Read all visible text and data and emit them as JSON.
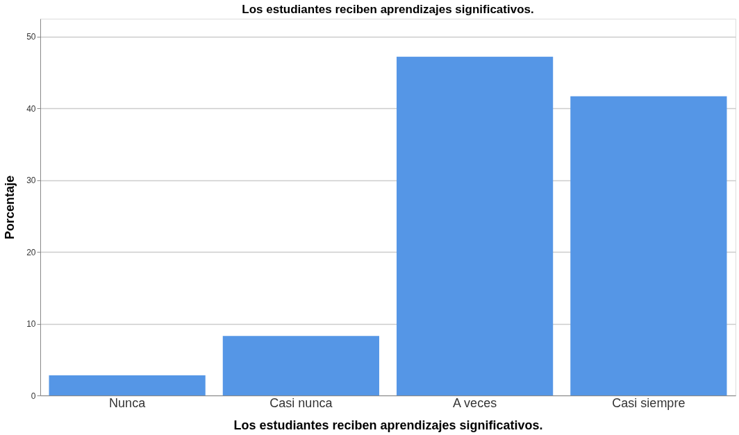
{
  "chart_data": {
    "type": "bar",
    "title": "Los estudiantes reciben aprendizajes significativos.",
    "xlabel": "Los estudiantes reciben aprendizajes significativos.",
    "ylabel": "Porcentaje",
    "categories": [
      "Nunca",
      "Casi nunca",
      "A veces",
      "Casi siempre"
    ],
    "values": [
      2.8,
      8.3,
      47.2,
      41.7
    ],
    "color": "#5596e6",
    "ylim": [
      0,
      52.5
    ],
    "yticks": [
      0,
      10,
      20,
      30,
      40,
      50
    ],
    "grid": "y"
  }
}
